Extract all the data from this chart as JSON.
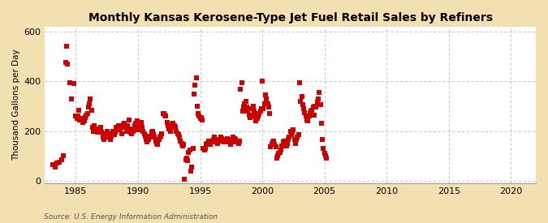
{
  "title": "Monthly Kansas Kerosene-Type Jet Fuel Retail Sales by Refiners",
  "ylabel": "Thousand Gallons per Day",
  "source": "Source: U.S. Energy Information Administration",
  "bg_color": "#f2e0b0",
  "plot_bg_color": "#ffffff",
  "marker_color": "#cc0000",
  "marker": "s",
  "marker_size": 4,
  "xlim": [
    1982.5,
    2022
  ],
  "ylim": [
    -10,
    620
  ],
  "yticks": [
    0,
    200,
    400,
    600
  ],
  "xticks": [
    1985,
    1990,
    1995,
    2000,
    2005,
    2010,
    2015,
    2020
  ],
  "data": [
    [
      1983.17,
      65
    ],
    [
      1983.33,
      55
    ],
    [
      1983.5,
      70
    ],
    [
      1983.67,
      75
    ],
    [
      1983.83,
      85
    ],
    [
      1984.0,
      100
    ],
    [
      1984.17,
      475
    ],
    [
      1984.25,
      540
    ],
    [
      1984.33,
      470
    ],
    [
      1984.5,
      395
    ],
    [
      1984.67,
      330
    ],
    [
      1984.83,
      390
    ],
    [
      1985.0,
      260
    ],
    [
      1985.08,
      250
    ],
    [
      1985.17,
      260
    ],
    [
      1985.25,
      285
    ],
    [
      1985.33,
      245
    ],
    [
      1985.42,
      250
    ],
    [
      1985.5,
      250
    ],
    [
      1985.58,
      235
    ],
    [
      1985.67,
      240
    ],
    [
      1985.75,
      255
    ],
    [
      1985.83,
      265
    ],
    [
      1985.92,
      270
    ],
    [
      1986.0,
      295
    ],
    [
      1986.08,
      310
    ],
    [
      1986.17,
      330
    ],
    [
      1986.25,
      285
    ],
    [
      1986.33,
      215
    ],
    [
      1986.42,
      200
    ],
    [
      1986.5,
      220
    ],
    [
      1986.58,
      210
    ],
    [
      1986.67,
      200
    ],
    [
      1986.75,
      195
    ],
    [
      1986.83,
      205
    ],
    [
      1986.92,
      210
    ],
    [
      1987.0,
      215
    ],
    [
      1987.08,
      195
    ],
    [
      1987.17,
      175
    ],
    [
      1987.25,
      165
    ],
    [
      1987.33,
      175
    ],
    [
      1987.42,
      190
    ],
    [
      1987.5,
      200
    ],
    [
      1987.58,
      185
    ],
    [
      1987.67,
      175
    ],
    [
      1987.75,
      165
    ],
    [
      1987.83,
      180
    ],
    [
      1987.92,
      190
    ],
    [
      1988.0,
      200
    ],
    [
      1988.08,
      185
    ],
    [
      1988.17,
      195
    ],
    [
      1988.25,
      215
    ],
    [
      1988.33,
      210
    ],
    [
      1988.42,
      220
    ],
    [
      1988.5,
      215
    ],
    [
      1988.58,
      205
    ],
    [
      1988.67,
      190
    ],
    [
      1988.75,
      215
    ],
    [
      1988.83,
      225
    ],
    [
      1988.92,
      230
    ],
    [
      1989.0,
      215
    ],
    [
      1989.08,
      200
    ],
    [
      1989.17,
      220
    ],
    [
      1989.25,
      245
    ],
    [
      1989.33,
      210
    ],
    [
      1989.42,
      195
    ],
    [
      1989.5,
      190
    ],
    [
      1989.58,
      200
    ],
    [
      1989.67,
      210
    ],
    [
      1989.75,
      220
    ],
    [
      1989.83,
      230
    ],
    [
      1989.92,
      240
    ],
    [
      1990.0,
      205
    ],
    [
      1990.08,
      215
    ],
    [
      1990.17,
      220
    ],
    [
      1990.25,
      235
    ],
    [
      1990.33,
      215
    ],
    [
      1990.42,
      200
    ],
    [
      1990.5,
      190
    ],
    [
      1990.58,
      180
    ],
    [
      1990.67,
      165
    ],
    [
      1990.75,
      155
    ],
    [
      1990.83,
      165
    ],
    [
      1990.92,
      175
    ],
    [
      1991.0,
      180
    ],
    [
      1991.08,
      195
    ],
    [
      1991.17,
      200
    ],
    [
      1991.25,
      185
    ],
    [
      1991.33,
      175
    ],
    [
      1991.42,
      160
    ],
    [
      1991.5,
      150
    ],
    [
      1991.58,
      145
    ],
    [
      1991.67,
      165
    ],
    [
      1991.75,
      175
    ],
    [
      1991.83,
      180
    ],
    [
      1991.92,
      190
    ],
    [
      1992.0,
      270
    ],
    [
      1992.08,
      270
    ],
    [
      1992.17,
      265
    ],
    [
      1992.25,
      260
    ],
    [
      1992.33,
      235
    ],
    [
      1992.42,
      220
    ],
    [
      1992.5,
      210
    ],
    [
      1992.58,
      200
    ],
    [
      1992.67,
      215
    ],
    [
      1992.75,
      225
    ],
    [
      1992.83,
      230
    ],
    [
      1992.92,
      220
    ],
    [
      1993.0,
      215
    ],
    [
      1993.08,
      200
    ],
    [
      1993.17,
      190
    ],
    [
      1993.25,
      185
    ],
    [
      1993.33,
      175
    ],
    [
      1993.42,
      160
    ],
    [
      1993.5,
      150
    ],
    [
      1993.58,
      140
    ],
    [
      1993.67,
      145
    ],
    [
      1993.75,
      5
    ],
    [
      1993.83,
      85
    ],
    [
      1993.92,
      90
    ],
    [
      1994.0,
      80
    ],
    [
      1994.08,
      115
    ],
    [
      1994.17,
      125
    ],
    [
      1994.25,
      40
    ],
    [
      1994.33,
      55
    ],
    [
      1994.42,
      130
    ],
    [
      1994.5,
      350
    ],
    [
      1994.58,
      385
    ],
    [
      1994.67,
      415
    ],
    [
      1994.75,
      300
    ],
    [
      1994.83,
      270
    ],
    [
      1994.92,
      260
    ],
    [
      1995.0,
      250
    ],
    [
      1995.08,
      255
    ],
    [
      1995.17,
      245
    ],
    [
      1995.25,
      130
    ],
    [
      1995.33,
      125
    ],
    [
      1995.42,
      130
    ],
    [
      1995.5,
      145
    ],
    [
      1995.58,
      150
    ],
    [
      1995.67,
      160
    ],
    [
      1995.75,
      150
    ],
    [
      1995.83,
      145
    ],
    [
      1995.92,
      155
    ],
    [
      1996.0,
      160
    ],
    [
      1996.08,
      165
    ],
    [
      1996.17,
      175
    ],
    [
      1996.25,
      165
    ],
    [
      1996.33,
      155
    ],
    [
      1996.42,
      150
    ],
    [
      1996.5,
      160
    ],
    [
      1996.58,
      165
    ],
    [
      1996.67,
      175
    ],
    [
      1996.75,
      170
    ],
    [
      1996.83,
      165
    ],
    [
      1996.92,
      155
    ],
    [
      1997.0,
      160
    ],
    [
      1997.08,
      165
    ],
    [
      1997.17,
      170
    ],
    [
      1997.25,
      165
    ],
    [
      1997.33,
      155
    ],
    [
      1997.42,
      145
    ],
    [
      1997.5,
      155
    ],
    [
      1997.58,
      165
    ],
    [
      1997.67,
      175
    ],
    [
      1997.75,
      170
    ],
    [
      1997.83,
      165
    ],
    [
      1997.92,
      155
    ],
    [
      1998.0,
      155
    ],
    [
      1998.08,
      150
    ],
    [
      1998.17,
      160
    ],
    [
      1998.25,
      370
    ],
    [
      1998.33,
      395
    ],
    [
      1998.42,
      280
    ],
    [
      1998.5,
      295
    ],
    [
      1998.58,
      310
    ],
    [
      1998.67,
      320
    ],
    [
      1998.75,
      295
    ],
    [
      1998.83,
      280
    ],
    [
      1998.92,
      265
    ],
    [
      1999.0,
      255
    ],
    [
      1999.08,
      260
    ],
    [
      1999.17,
      290
    ],
    [
      1999.25,
      300
    ],
    [
      1999.33,
      280
    ],
    [
      1999.42,
      260
    ],
    [
      1999.5,
      240
    ],
    [
      1999.58,
      250
    ],
    [
      1999.67,
      260
    ],
    [
      1999.75,
      270
    ],
    [
      1999.83,
      280
    ],
    [
      1999.92,
      290
    ],
    [
      2000.0,
      400
    ],
    [
      2000.08,
      290
    ],
    [
      2000.17,
      310
    ],
    [
      2000.25,
      345
    ],
    [
      2000.33,
      330
    ],
    [
      2000.42,
      310
    ],
    [
      2000.5,
      295
    ],
    [
      2000.58,
      270
    ],
    [
      2000.67,
      135
    ],
    [
      2000.75,
      145
    ],
    [
      2000.83,
      155
    ],
    [
      2000.92,
      160
    ],
    [
      2001.0,
      145
    ],
    [
      2001.08,
      135
    ],
    [
      2001.17,
      90
    ],
    [
      2001.25,
      100
    ],
    [
      2001.33,
      110
    ],
    [
      2001.42,
      115
    ],
    [
      2001.5,
      125
    ],
    [
      2001.58,
      140
    ],
    [
      2001.67,
      155
    ],
    [
      2001.75,
      160
    ],
    [
      2001.83,
      150
    ],
    [
      2001.92,
      140
    ],
    [
      2002.0,
      150
    ],
    [
      2002.08,
      165
    ],
    [
      2002.17,
      175
    ],
    [
      2002.25,
      200
    ],
    [
      2002.33,
      185
    ],
    [
      2002.42,
      195
    ],
    [
      2002.5,
      205
    ],
    [
      2002.58,
      165
    ],
    [
      2002.67,
      150
    ],
    [
      2002.75,
      165
    ],
    [
      2002.83,
      175
    ],
    [
      2002.92,
      185
    ],
    [
      2003.0,
      395
    ],
    [
      2003.08,
      320
    ],
    [
      2003.17,
      340
    ],
    [
      2003.25,
      305
    ],
    [
      2003.33,
      290
    ],
    [
      2003.42,
      275
    ],
    [
      2003.5,
      260
    ],
    [
      2003.58,
      245
    ],
    [
      2003.67,
      240
    ],
    [
      2003.75,
      260
    ],
    [
      2003.83,
      270
    ],
    [
      2003.92,
      280
    ],
    [
      2004.0,
      285
    ],
    [
      2004.08,
      295
    ],
    [
      2004.17,
      265
    ],
    [
      2004.25,
      300
    ],
    [
      2004.33,
      295
    ],
    [
      2004.42,
      315
    ],
    [
      2004.5,
      330
    ],
    [
      2004.58,
      355
    ],
    [
      2004.67,
      305
    ],
    [
      2004.75,
      230
    ],
    [
      2004.83,
      165
    ],
    [
      2004.92,
      130
    ],
    [
      2005.0,
      110
    ],
    [
      2005.08,
      100
    ],
    [
      2005.17,
      90
    ]
  ]
}
